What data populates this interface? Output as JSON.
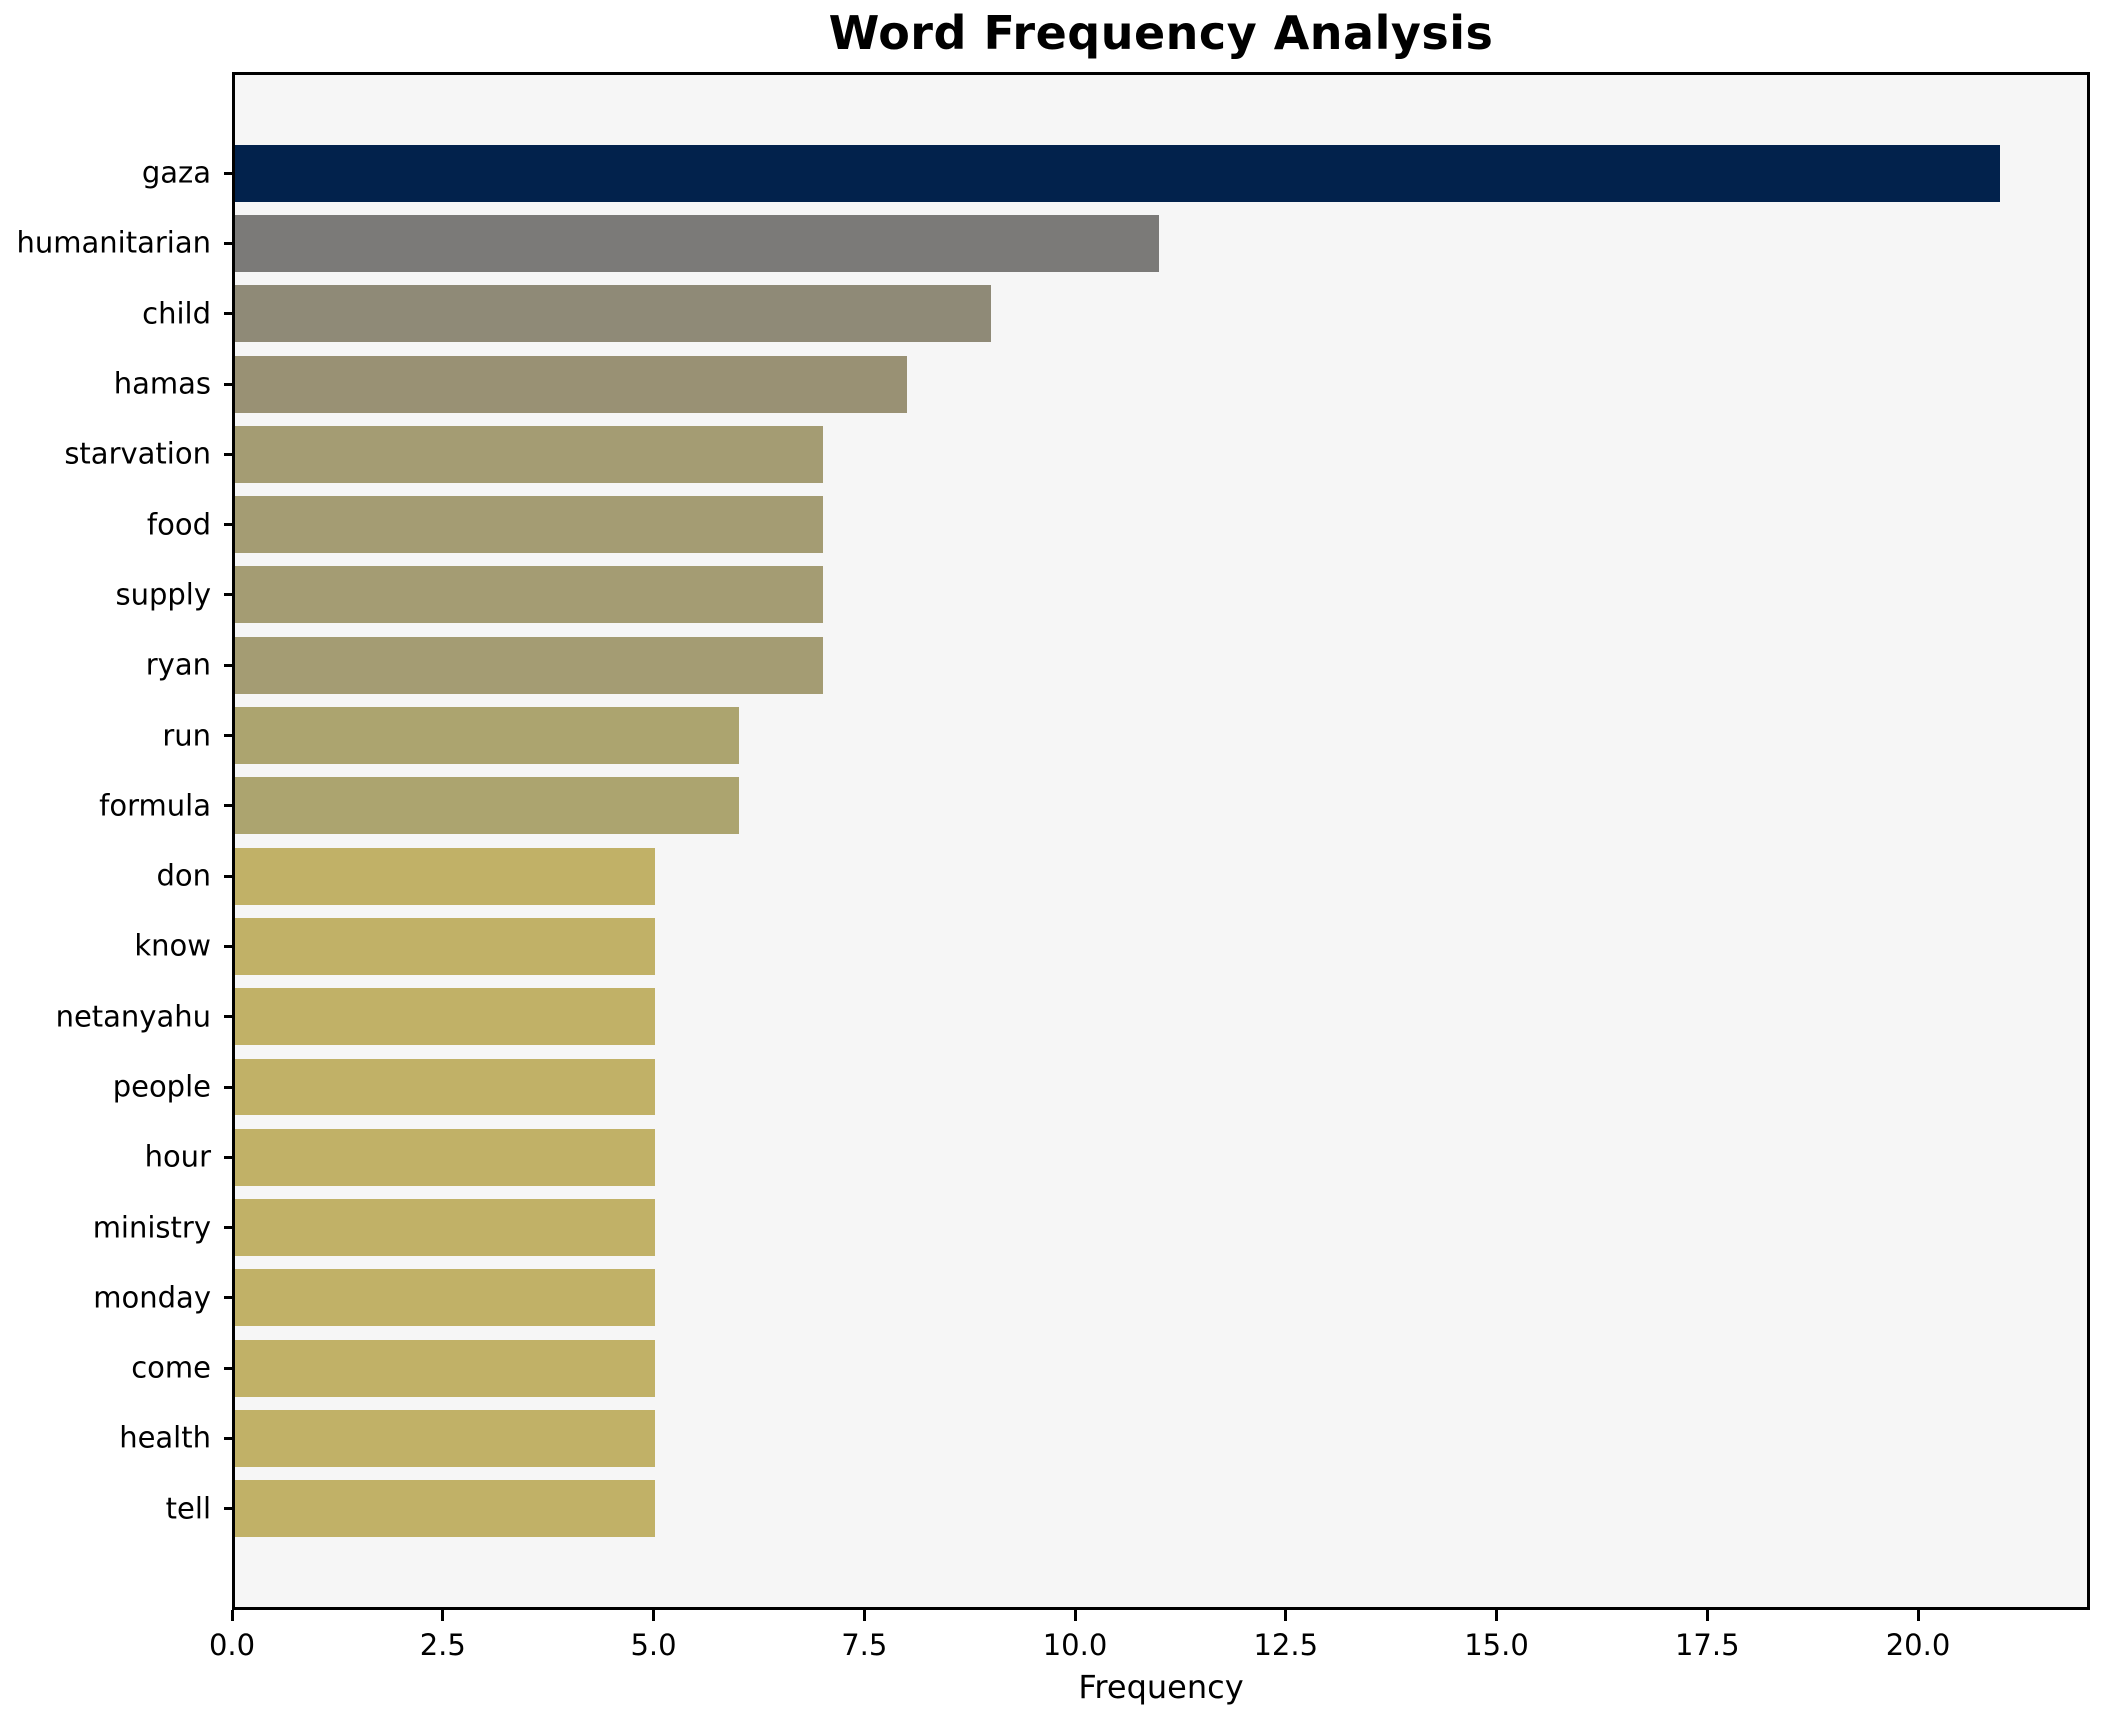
{
  "chart_data": {
    "type": "bar",
    "orientation": "horizontal",
    "title": "Word Frequency Analysis",
    "xlabel": "Frequency",
    "ylabel": "",
    "xlim": [
      0,
      22.04
    ],
    "grid": false,
    "legend": null,
    "categories": [
      "gaza",
      "humanitarian",
      "child",
      "hamas",
      "starvation",
      "food",
      "supply",
      "ryan",
      "run",
      "formula",
      "don",
      "know",
      "netanyahu",
      "people",
      "hour",
      "ministry",
      "monday",
      "come",
      "health",
      "tell"
    ],
    "values": [
      21,
      11,
      9,
      8,
      7,
      7,
      7,
      7,
      6,
      6,
      5,
      5,
      5,
      5,
      5,
      5,
      5,
      5,
      5,
      5
    ],
    "bar_colors": [
      "#02224c",
      "#7b7a78",
      "#8f8a77",
      "#999174",
      "#a49c73",
      "#a49c73",
      "#a49c73",
      "#a49c73",
      "#aca46f",
      "#aca46f",
      "#c1b167",
      "#c1b167",
      "#c1b167",
      "#c1b167",
      "#c1b167",
      "#c1b167",
      "#c1b167",
      "#c1b167",
      "#c1b167",
      "#c1b167"
    ],
    "x_tick_values": [
      0,
      2.5,
      5,
      7.5,
      10,
      12.5,
      15,
      17.5,
      20
    ],
    "x_tick_labels": [
      "0.0",
      "2.5",
      "5.0",
      "7.5",
      "10.0",
      "12.5",
      "15.0",
      "17.5",
      "20.0"
    ]
  },
  "colors": {
    "figure_background": "#ffffff",
    "plot_background": "#f6f6f6",
    "spine": "#000000",
    "text": "#000000"
  }
}
